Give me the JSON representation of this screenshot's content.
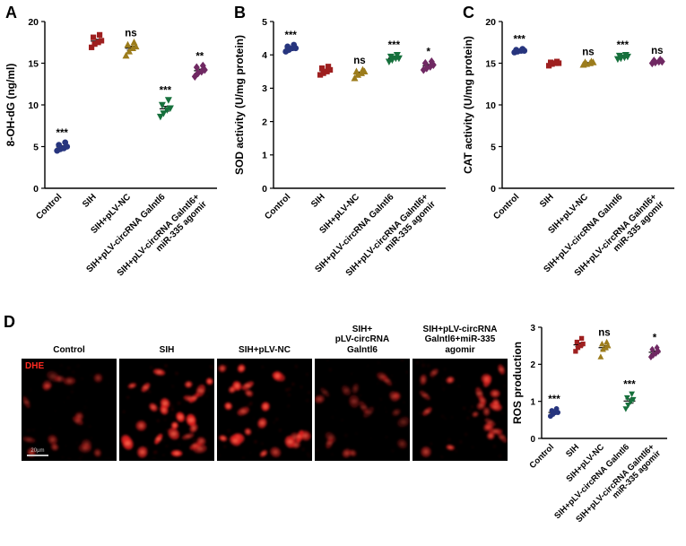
{
  "panel_labels": {
    "A": "A",
    "B": "B",
    "C": "C",
    "D": "D"
  },
  "categories": [
    [
      "Control"
    ],
    [
      "SIH"
    ],
    [
      "SIH+pLV-NC"
    ],
    [
      "SIH+pLV-circRNA Galntl6"
    ],
    [
      "SIH+pLV-circRNA Galntl6+",
      "miR-335 agomir"
    ]
  ],
  "colors": {
    "control": "#27357e",
    "sih": "#9e1f1f",
    "plv_nc": "#9c7c1c",
    "galntl6": "#16703c",
    "agomir": "#702963",
    "dhe_label": "#ff2a21",
    "axis": "#000000"
  },
  "chart_data": [
    {
      "id": "A",
      "type": "scatter",
      "ylabel": "8-OH-dG (ng/ml)",
      "ylim": [
        0,
        20
      ],
      "yticks": [
        0,
        5,
        10,
        15,
        20
      ],
      "series": [
        {
          "name": "Control",
          "marker": "circle",
          "color": "#27357e",
          "values": [
            4.5,
            4.7,
            4.8,
            5.0,
            5.2,
            5.5
          ],
          "sig": "***"
        },
        {
          "name": "SIH",
          "marker": "square",
          "color": "#9e1f1f",
          "values": [
            16.9,
            17.3,
            17.5,
            17.7,
            18.1,
            18.4
          ],
          "sig": ""
        },
        {
          "name": "SIH+pLV-NC",
          "marker": "triangle-up",
          "color": "#9c7c1c",
          "values": [
            15.9,
            16.4,
            16.8,
            17.0,
            17.2,
            17.5
          ],
          "sig": "ns"
        },
        {
          "name": "SIH+pLV-circRNA Galntl6",
          "marker": "triangle-down",
          "color": "#16703c",
          "values": [
            8.6,
            9.0,
            9.4,
            9.6,
            10.0,
            10.6
          ],
          "sig": "***"
        },
        {
          "name": "SIH+pLV-circRNA Galntl6+ miR-335 agomir",
          "marker": "diamond",
          "color": "#702963",
          "values": [
            13.4,
            13.8,
            14.0,
            14.2,
            14.5,
            14.7
          ],
          "sig": "**"
        }
      ]
    },
    {
      "id": "B",
      "type": "scatter",
      "ylabel": "SOD activity (U/mg protein)",
      "ylim": [
        0,
        5
      ],
      "yticks": [
        0,
        1,
        2,
        3,
        4,
        5
      ],
      "series": [
        {
          "name": "Control",
          "marker": "circle",
          "color": "#27357e",
          "values": [
            4.1,
            4.15,
            4.2,
            4.2,
            4.25,
            4.3
          ],
          "sig": "***"
        },
        {
          "name": "SIH",
          "marker": "square",
          "color": "#9e1f1f",
          "values": [
            3.4,
            3.45,
            3.5,
            3.55,
            3.6,
            3.65
          ],
          "sig": ""
        },
        {
          "name": "SIH+pLV-NC",
          "marker": "triangle-up",
          "color": "#9c7c1c",
          "values": [
            3.3,
            3.4,
            3.45,
            3.5,
            3.5,
            3.55
          ],
          "sig": "ns"
        },
        {
          "name": "SIH+pLV-circRNA Galntl6",
          "marker": "triangle-down",
          "color": "#16703c",
          "values": [
            3.8,
            3.85,
            3.9,
            3.9,
            3.95,
            4.0
          ],
          "sig": "***"
        },
        {
          "name": "SIH+pLV-circRNA Galntl6+ miR-335 agomir",
          "marker": "diamond",
          "color": "#702963",
          "values": [
            3.55,
            3.6,
            3.65,
            3.7,
            3.75,
            3.8
          ],
          "sig": "*"
        }
      ]
    },
    {
      "id": "C",
      "type": "scatter",
      "ylabel": "CAT activity (U/mg protein)",
      "ylim": [
        0,
        20
      ],
      "yticks": [
        0,
        5,
        10,
        15,
        20
      ],
      "series": [
        {
          "name": "Control",
          "marker": "circle",
          "color": "#27357e",
          "values": [
            16.3,
            16.4,
            16.5,
            16.5,
            16.6,
            16.7
          ],
          "sig": "***"
        },
        {
          "name": "SIH",
          "marker": "square",
          "color": "#9e1f1f",
          "values": [
            14.7,
            14.9,
            15.0,
            15.0,
            15.1,
            15.2
          ],
          "sig": ""
        },
        {
          "name": "SIH+pLV-NC",
          "marker": "triangle-up",
          "color": "#9c7c1c",
          "values": [
            14.8,
            14.9,
            15.0,
            15.1,
            15.1,
            15.2
          ],
          "sig": "ns"
        },
        {
          "name": "SIH+pLV-circRNA Galntl6",
          "marker": "triangle-down",
          "color": "#16703c",
          "values": [
            15.5,
            15.6,
            15.7,
            15.8,
            15.9,
            16.0
          ],
          "sig": "***"
        },
        {
          "name": "SIH+pLV-circRNA Galntl6+ miR-335 agomir",
          "marker": "diamond",
          "color": "#702963",
          "values": [
            15.0,
            15.1,
            15.2,
            15.2,
            15.3,
            15.4
          ],
          "sig": "ns"
        }
      ]
    },
    {
      "id": "D",
      "type": "scatter",
      "ylabel": "ROS production",
      "ylim": [
        0,
        3
      ],
      "yticks": [
        0,
        1,
        2,
        3
      ],
      "series": [
        {
          "name": "Control",
          "marker": "circle",
          "color": "#27357e",
          "values": [
            0.6,
            0.65,
            0.7,
            0.7,
            0.75,
            0.8
          ],
          "sig": "***"
        },
        {
          "name": "SIH",
          "marker": "square",
          "color": "#9e1f1f",
          "values": [
            2.35,
            2.45,
            2.5,
            2.55,
            2.6,
            2.7
          ],
          "sig": ""
        },
        {
          "name": "SIH+pLV-NC",
          "marker": "triangle-up",
          "color": "#9c7c1c",
          "values": [
            2.2,
            2.4,
            2.45,
            2.5,
            2.55,
            2.6
          ],
          "sig": "ns"
        },
        {
          "name": "SIH+pLV-circRNA Galntl6",
          "marker": "triangle-down",
          "color": "#16703c",
          "values": [
            0.8,
            0.9,
            1.0,
            1.05,
            1.1,
            1.2
          ],
          "sig": "***"
        },
        {
          "name": "SIH+pLV-circRNA Galntl6+ miR-335 agomir",
          "marker": "diamond",
          "color": "#702963",
          "values": [
            2.2,
            2.25,
            2.3,
            2.35,
            2.4,
            2.45
          ],
          "sig": "*"
        }
      ]
    }
  ],
  "panel_d": {
    "stain_label": "DHE",
    "scale_bar_label": "20μm",
    "images": [
      {
        "title": "Control",
        "intensity": 0.5,
        "cells": 16
      },
      {
        "title": "SIH",
        "intensity": 1.0,
        "cells": 26
      },
      {
        "title": "SIH+pLV-NC",
        "intensity": 0.95,
        "cells": 24
      },
      {
        "title": "SIH+\npLV-circRNA\nGalntl6",
        "intensity": 0.5,
        "cells": 18
      },
      {
        "title": "SIH+pLV-circRNA\nGalntl6+miR-335\nagomir",
        "intensity": 0.9,
        "cells": 24
      }
    ]
  }
}
